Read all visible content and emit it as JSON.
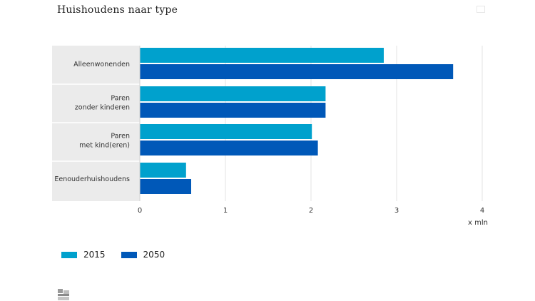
{
  "page": {
    "title": "Huishoudens naar type",
    "logo_icon": "cbs-logo-icon",
    "share_icon": "fullscreen-icon"
  },
  "chart_data": {
    "type": "bar",
    "orientation": "horizontal",
    "title": "Huishoudens naar type",
    "categories": [
      [
        "Alleenwonenden"
      ],
      [
        "Paren",
        "zonder kinderen"
      ],
      [
        "Paren",
        "met kind(eren)"
      ],
      [
        "Eenouderhuishoudens"
      ]
    ],
    "series": [
      {
        "name": "2015",
        "color": "#00A1CD",
        "values": [
          2.85,
          2.17,
          2.01,
          0.54
        ]
      },
      {
        "name": "2050",
        "color": "#0058B8",
        "values": [
          3.66,
          2.17,
          2.08,
          0.6
        ]
      }
    ],
    "xlim": [
      0,
      4
    ],
    "xticks": [
      "0",
      "1",
      "2",
      "3",
      "4"
    ],
    "xlabel": "x mln",
    "ylabel": "",
    "grid": true,
    "legend": "bottom-left",
    "category_band_color": "#EBEBEB",
    "grid_color": "#E3E3E3"
  }
}
